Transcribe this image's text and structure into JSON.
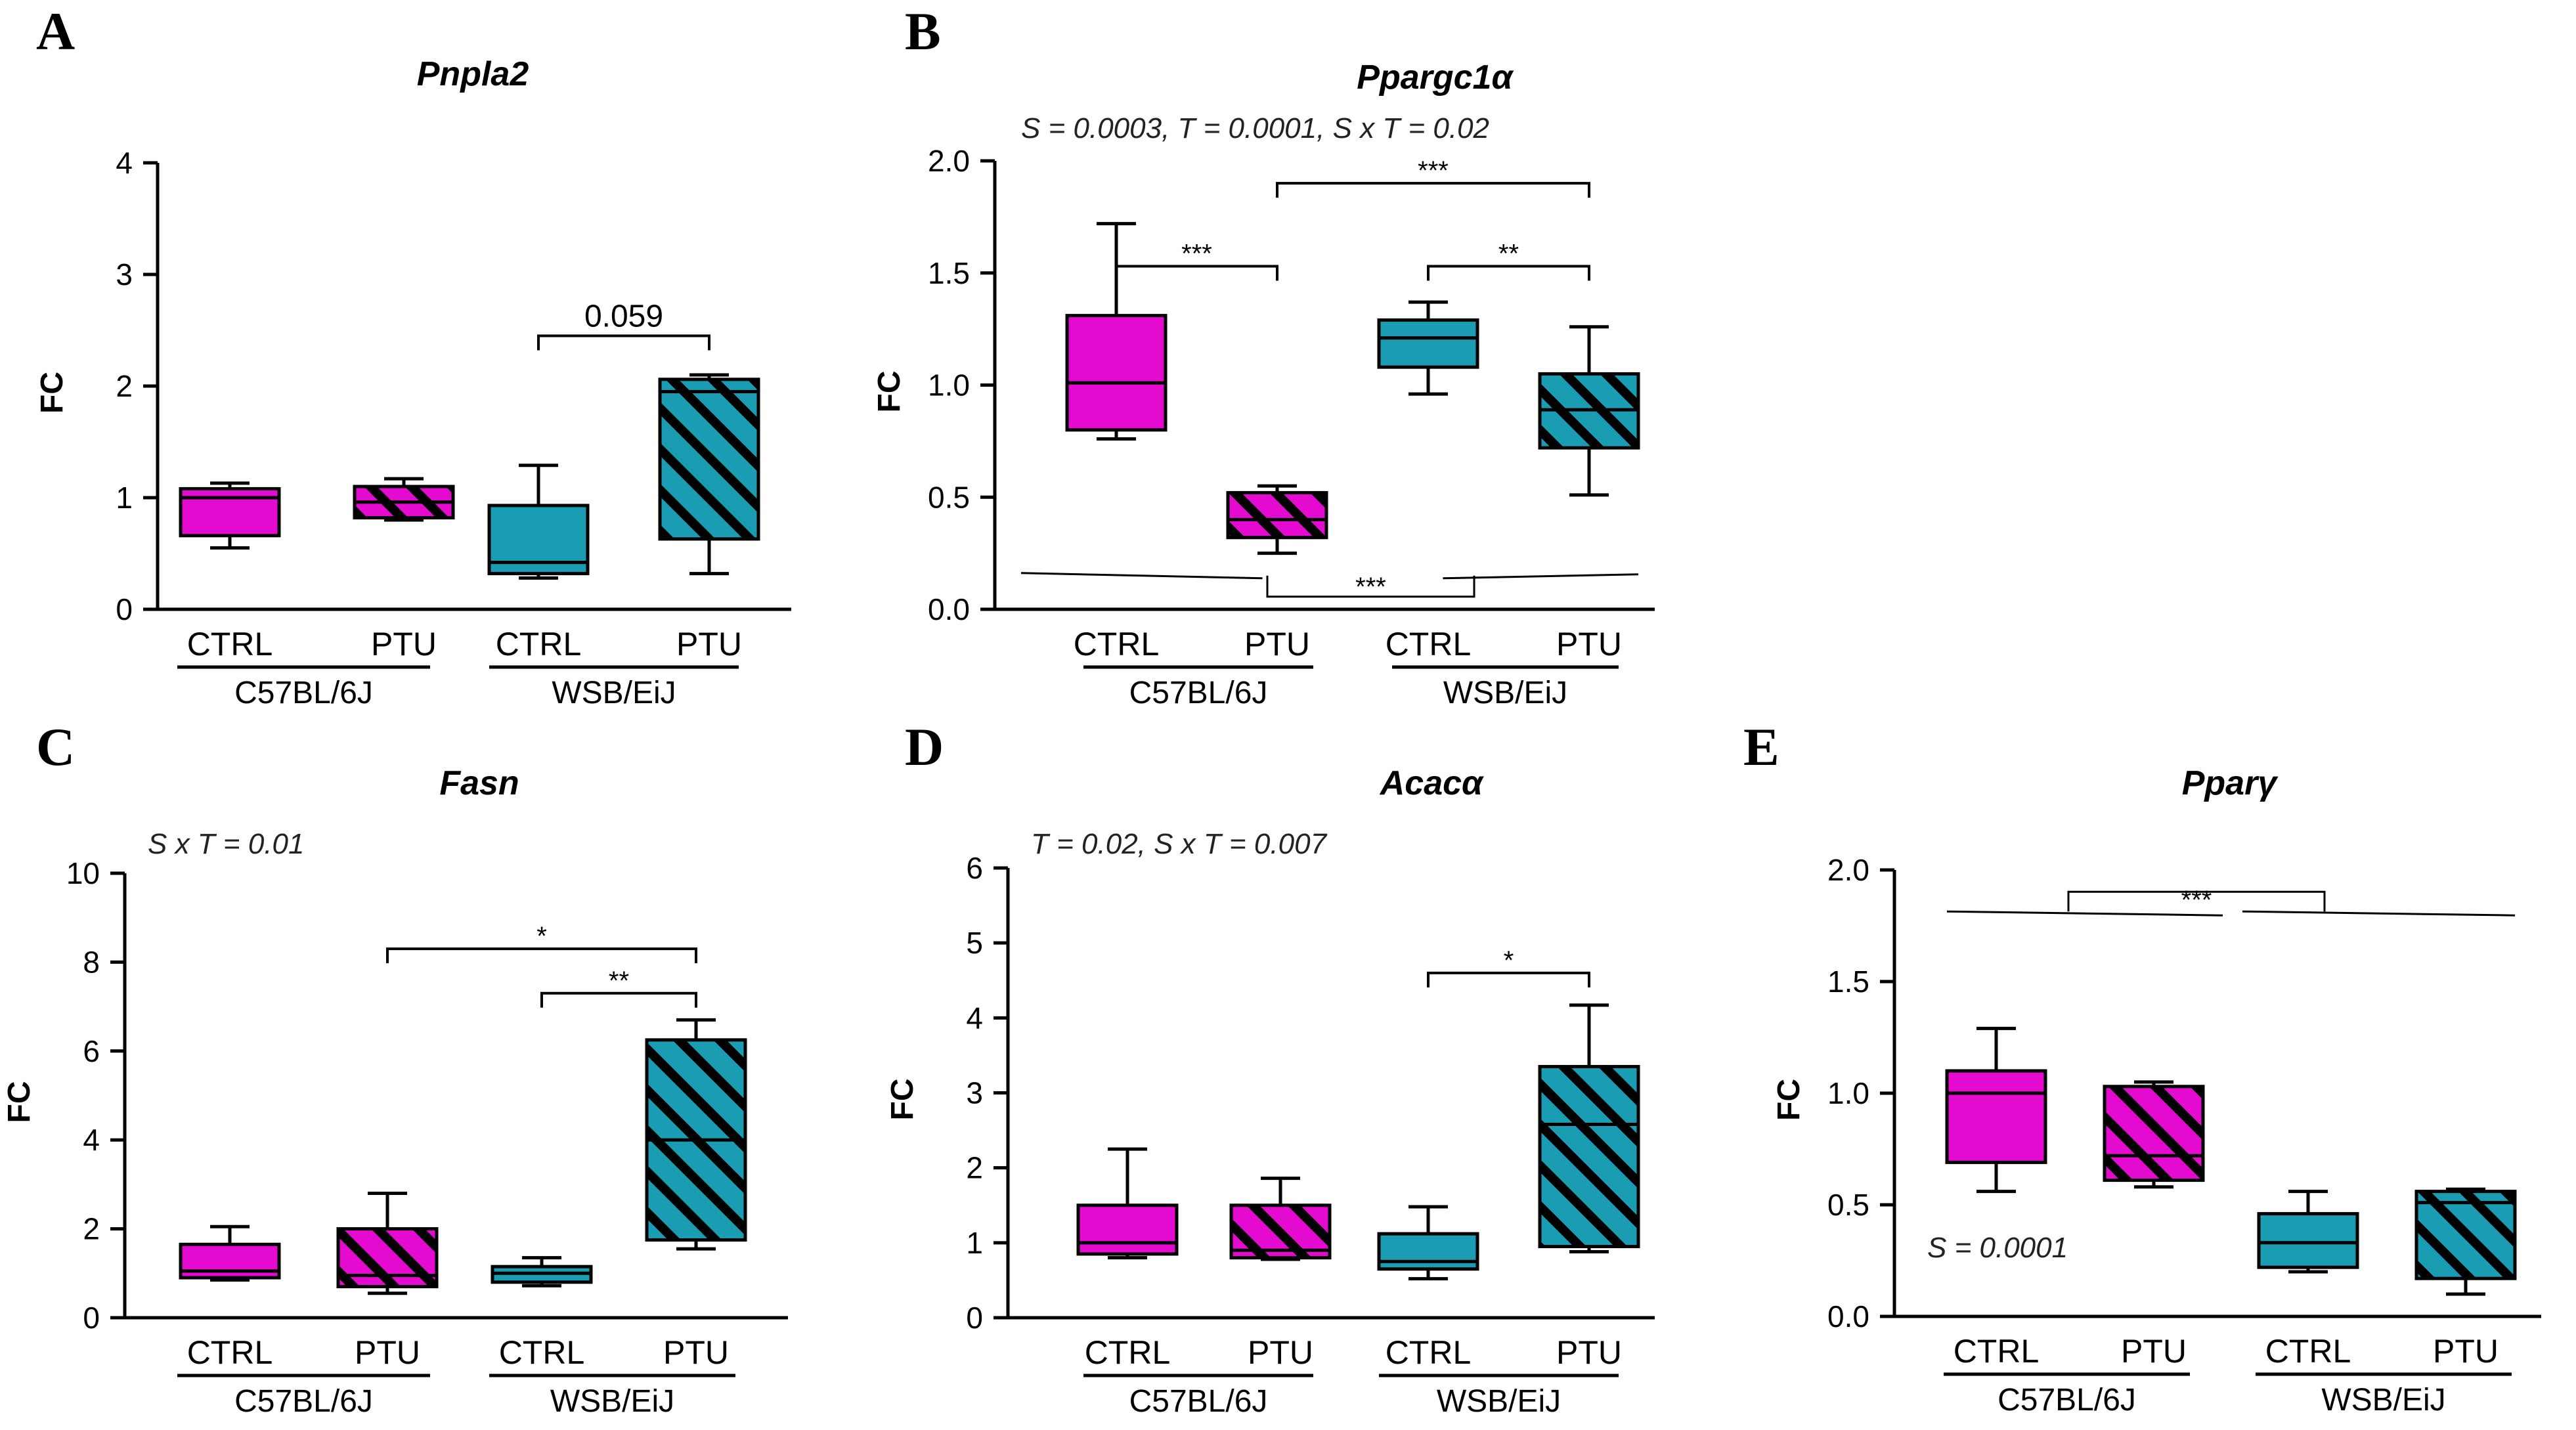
{
  "colors": {
    "c57": "#e40acf",
    "wsb": "#1a9cb3",
    "stroke": "#000000",
    "hatch": "#000000"
  },
  "chart_data": [
    {
      "panel": "A",
      "title": "Pnpla2",
      "type": "box",
      "ylabel": "FC",
      "ylim": [
        0,
        4
      ],
      "yticks": [
        "0",
        "1",
        "2",
        "3",
        "4"
      ],
      "stats": "",
      "categories": [
        "CTRL",
        "PTU",
        "CTRL",
        "PTU"
      ],
      "groups": [
        "C57BL/6J",
        "WSB/EiJ"
      ],
      "boxes": [
        {
          "strain": "C57BL/6J",
          "treatment": "CTRL",
          "min": 0.55,
          "q1": 0.66,
          "median": 1.0,
          "q3": 1.08,
          "max": 1.13
        },
        {
          "strain": "C57BL/6J",
          "treatment": "PTU",
          "min": 0.8,
          "q1": 0.82,
          "median": 0.96,
          "q3": 1.1,
          "max": 1.17
        },
        {
          "strain": "WSB/EiJ",
          "treatment": "CTRL",
          "min": 0.28,
          "q1": 0.32,
          "median": 0.42,
          "q3": 0.93,
          "max": 1.29
        },
        {
          "strain": "WSB/EiJ",
          "treatment": "PTU",
          "min": 0.32,
          "q1": 0.63,
          "median": 1.95,
          "q3": 2.06,
          "max": 2.1
        }
      ],
      "brackets": [
        {
          "from": 3,
          "to": 4,
          "y": 2.45,
          "label": "0.059"
        }
      ]
    },
    {
      "panel": "B",
      "title": "Ppargc1α",
      "type": "box",
      "ylabel": "FC",
      "ylim": [
        0,
        2
      ],
      "yticks": [
        "0.0",
        "0.5",
        "1.0",
        "1.5",
        "2.0"
      ],
      "stats": "S = 0.0003, T = 0.0001,  S x T = 0.02",
      "categories": [
        "CTRL",
        "PTU",
        "CTRL",
        "PTU"
      ],
      "groups": [
        "C57BL/6J",
        "WSB/EiJ"
      ],
      "boxes": [
        {
          "strain": "C57BL/6J",
          "treatment": "CTRL",
          "min": 0.76,
          "q1": 0.8,
          "median": 1.01,
          "q3": 1.31,
          "max": 1.72
        },
        {
          "strain": "C57BL/6J",
          "treatment": "PTU",
          "min": 0.25,
          "q1": 0.32,
          "median": 0.4,
          "q3": 0.52,
          "max": 0.55
        },
        {
          "strain": "WSB/EiJ",
          "treatment": "CTRL",
          "min": 0.96,
          "q1": 1.08,
          "median": 1.21,
          "q3": 1.29,
          "max": 1.37
        },
        {
          "strain": "WSB/EiJ",
          "treatment": "PTU",
          "min": 0.51,
          "q1": 0.72,
          "median": 0.89,
          "q3": 1.05,
          "max": 1.26
        }
      ],
      "brackets": [
        {
          "from": 1,
          "to": 2,
          "y": 1.53,
          "label": "***"
        },
        {
          "from": 3,
          "to": 4,
          "y": 1.53,
          "label": "**"
        },
        {
          "from": 2,
          "to": 4,
          "y": 1.9,
          "label": "***"
        }
      ],
      "strain_bracket": {
        "y": 0.15,
        "label": "***"
      }
    },
    {
      "panel": "C",
      "title": "Fasn",
      "type": "box",
      "ylabel": "FC",
      "ylim": [
        0,
        10
      ],
      "yticks": [
        "0",
        "2",
        "4",
        "6",
        "8",
        "10"
      ],
      "stats": "S x T = 0.01",
      "categories": [
        "CTRL",
        "PTU",
        "CTRL",
        "PTU"
      ],
      "groups": [
        "C57BL/6J",
        "WSB/EiJ"
      ],
      "boxes": [
        {
          "strain": "C57BL/6J",
          "treatment": "CTRL",
          "min": 0.85,
          "q1": 0.9,
          "median": 1.05,
          "q3": 1.65,
          "max": 2.05
        },
        {
          "strain": "C57BL/6J",
          "treatment": "PTU",
          "min": 0.55,
          "q1": 0.7,
          "median": 0.95,
          "q3": 2.0,
          "max": 2.8
        },
        {
          "strain": "WSB/EiJ",
          "treatment": "CTRL",
          "min": 0.72,
          "q1": 0.8,
          "median": 1.0,
          "q3": 1.15,
          "max": 1.35
        },
        {
          "strain": "WSB/EiJ",
          "treatment": "PTU",
          "min": 1.55,
          "q1": 1.75,
          "median": 4.0,
          "q3": 6.25,
          "max": 6.7
        }
      ],
      "brackets": [
        {
          "from": 3,
          "to": 4,
          "y": 7.3,
          "label": "**"
        },
        {
          "from": 2,
          "to": 4,
          "y": 8.3,
          "label": "*"
        }
      ]
    },
    {
      "panel": "D",
      "title": "Acacα",
      "type": "box",
      "ylabel": "FC",
      "ylim": [
        0,
        6
      ],
      "yticks": [
        "0",
        "1",
        "2",
        "3",
        "4",
        "5",
        "6"
      ],
      "stats": "T = 0.02,  S x T = 0.007",
      "categories": [
        "CTRL",
        "PTU",
        "CTRL",
        "PTU"
      ],
      "groups": [
        "C57BL/6J",
        "WSB/EiJ"
      ],
      "boxes": [
        {
          "strain": "C57BL/6J",
          "treatment": "CTRL",
          "min": 0.8,
          "q1": 0.85,
          "median": 1.0,
          "q3": 1.5,
          "max": 2.25
        },
        {
          "strain": "C57BL/6J",
          "treatment": "PTU",
          "min": 0.78,
          "q1": 0.8,
          "median": 0.9,
          "q3": 1.5,
          "max": 1.86
        },
        {
          "strain": "WSB/EiJ",
          "treatment": "CTRL",
          "min": 0.52,
          "q1": 0.65,
          "median": 0.75,
          "q3": 1.12,
          "max": 1.48
        },
        {
          "strain": "WSB/EiJ",
          "treatment": "PTU",
          "min": 0.88,
          "q1": 0.95,
          "median": 2.58,
          "q3": 3.35,
          "max": 4.17
        }
      ],
      "brackets": [
        {
          "from": 3,
          "to": 4,
          "y": 4.6,
          "label": "*"
        }
      ]
    },
    {
      "panel": "E",
      "title": "Pparγ",
      "type": "box",
      "ylabel": "FC",
      "ylim": [
        0,
        2
      ],
      "yticks": [
        "0.0",
        "0.5",
        "1.0",
        "1.5",
        "2.0"
      ],
      "stats": "",
      "note": "S = 0.0001",
      "categories": [
        "CTRL",
        "PTU",
        "CTRL",
        "PTU"
      ],
      "groups": [
        "C57BL/6J",
        "WSB/EiJ"
      ],
      "boxes": [
        {
          "strain": "C57BL/6J",
          "treatment": "CTRL",
          "min": 0.56,
          "q1": 0.69,
          "median": 1.0,
          "q3": 1.1,
          "max": 1.29
        },
        {
          "strain": "C57BL/6J",
          "treatment": "PTU",
          "min": 0.58,
          "q1": 0.61,
          "median": 0.72,
          "q3": 1.03,
          "max": 1.05
        },
        {
          "strain": "WSB/EiJ",
          "treatment": "CTRL",
          "min": 0.2,
          "q1": 0.22,
          "median": 0.33,
          "q3": 0.46,
          "max": 0.56
        },
        {
          "strain": "WSB/EiJ",
          "treatment": "PTU",
          "min": 0.1,
          "q1": 0.17,
          "median": 0.51,
          "q3": 0.56,
          "max": 0.57
        }
      ],
      "brackets": [],
      "strain_bracket_top": {
        "y": 1.82,
        "label": "***"
      }
    }
  ]
}
